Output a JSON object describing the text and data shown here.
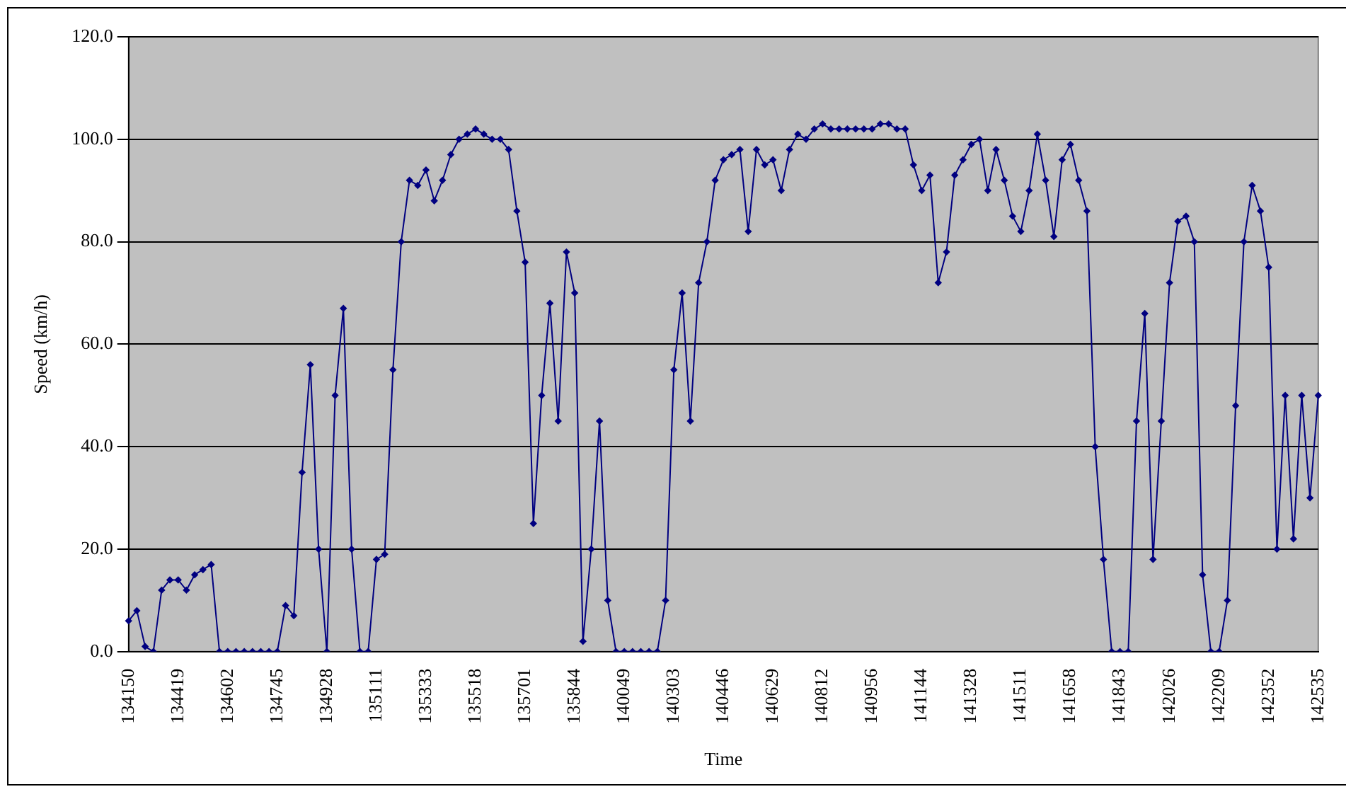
{
  "chart_data": {
    "type": "line",
    "xlabel": "Time",
    "ylabel": "Speed (km/h)",
    "categories": [
      "134150",
      null,
      null,
      null,
      null,
      null,
      "134419",
      null,
      null,
      null,
      null,
      null,
      "134602",
      null,
      null,
      null,
      null,
      null,
      "134745",
      null,
      null,
      null,
      null,
      null,
      "134928",
      null,
      null,
      null,
      null,
      null,
      "135111",
      null,
      null,
      null,
      null,
      null,
      "135333",
      null,
      null,
      null,
      null,
      null,
      "135518",
      null,
      null,
      null,
      null,
      null,
      "135701",
      null,
      null,
      null,
      null,
      null,
      "135844",
      null,
      null,
      null,
      null,
      null,
      "140049",
      null,
      null,
      null,
      null,
      null,
      "140303",
      null,
      null,
      null,
      null,
      null,
      "140446",
      null,
      null,
      null,
      null,
      null,
      "140629",
      null,
      null,
      null,
      null,
      null,
      "140812",
      null,
      null,
      null,
      null,
      null,
      "140956",
      null,
      null,
      null,
      null,
      null,
      "141144",
      null,
      null,
      null,
      null,
      null,
      "141328",
      null,
      null,
      null,
      null,
      null,
      "141511",
      null,
      null,
      null,
      null,
      null,
      "141658",
      null,
      null,
      null,
      null,
      null,
      "141843",
      null,
      null,
      null,
      null,
      null,
      "142026",
      null,
      null,
      null,
      null,
      null,
      "142209",
      null,
      null,
      null,
      null,
      null,
      "142352",
      null,
      null,
      null,
      null,
      null,
      "142535"
    ],
    "series": [
      {
        "color": "#000080",
        "values": [
          6,
          8,
          1,
          0,
          12,
          14,
          14,
          12,
          15,
          16,
          17,
          0,
          0,
          0,
          0,
          0,
          0,
          0,
          0,
          9,
          7,
          35,
          56,
          20,
          0,
          50,
          67,
          20,
          0,
          0,
          18,
          19,
          55,
          80,
          92,
          91,
          94,
          88,
          92,
          97,
          100,
          101,
          102,
          101,
          100,
          100,
          98,
          86,
          76,
          25,
          50,
          68,
          45,
          78,
          70,
          2,
          20,
          45,
          10,
          0,
          0,
          0,
          0,
          0,
          0,
          10,
          55,
          70,
          45,
          72,
          80,
          92,
          96,
          97,
          98,
          82,
          98,
          95,
          96,
          90,
          98,
          101,
          100,
          102,
          103,
          102,
          102,
          102,
          102,
          102,
          102,
          103,
          103,
          102,
          102,
          95,
          90,
          93,
          72,
          78,
          93,
          96,
          99,
          100,
          90,
          98,
          92,
          85,
          82,
          90,
          101,
          92,
          81,
          96,
          99,
          92,
          86,
          40,
          18,
          0,
          0,
          0,
          45,
          66,
          18,
          45,
          72,
          84,
          85,
          80,
          15,
          0,
          0,
          10,
          48,
          80,
          91,
          86,
          75,
          20,
          50,
          22,
          50,
          30,
          50
        ]
      }
    ],
    "ylim": [
      0,
      120
    ],
    "yticks": [
      {
        "value": 0,
        "label": "0.0"
      },
      {
        "value": 20,
        "label": "20.0"
      },
      {
        "value": 40,
        "label": "40.0"
      },
      {
        "value": 60,
        "label": "60.0"
      },
      {
        "value": 80,
        "label": "80.0"
      },
      {
        "value": 100,
        "label": "100.0"
      },
      {
        "value": 120,
        "label": "120.0"
      }
    ],
    "grid": "y",
    "marker": "diamond",
    "legend": false
  }
}
